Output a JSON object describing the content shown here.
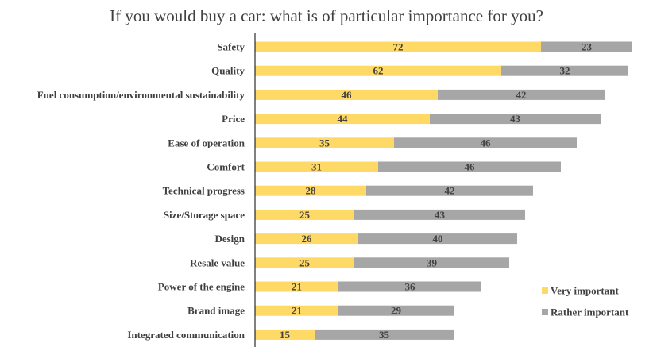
{
  "chart_data": {
    "type": "bar",
    "orientation": "horizontal",
    "stacked": true,
    "title": "If you would buy a car: what is of particular importance for you?",
    "categories": [
      "Safety",
      "Quality",
      "Fuel consumption/environmental sustainability",
      "Price",
      "Ease of operation",
      "Comfort",
      "Technical progress",
      "Size/Storage space",
      "Design",
      "Resale value",
      "Power of the engine",
      "Brand image",
      "Integrated communication"
    ],
    "series": [
      {
        "name": "Very important",
        "color": "#FFD966",
        "values": [
          72,
          62,
          46,
          44,
          35,
          31,
          28,
          25,
          26,
          25,
          21,
          21,
          15
        ]
      },
      {
        "name": "Rather important",
        "color": "#A6A6A6",
        "values": [
          23,
          32,
          42,
          43,
          46,
          46,
          42,
          43,
          40,
          39,
          36,
          29,
          35
        ]
      }
    ],
    "xlim": [
      0,
      100
    ],
    "legend_position": "bottom-right",
    "grid": false
  }
}
